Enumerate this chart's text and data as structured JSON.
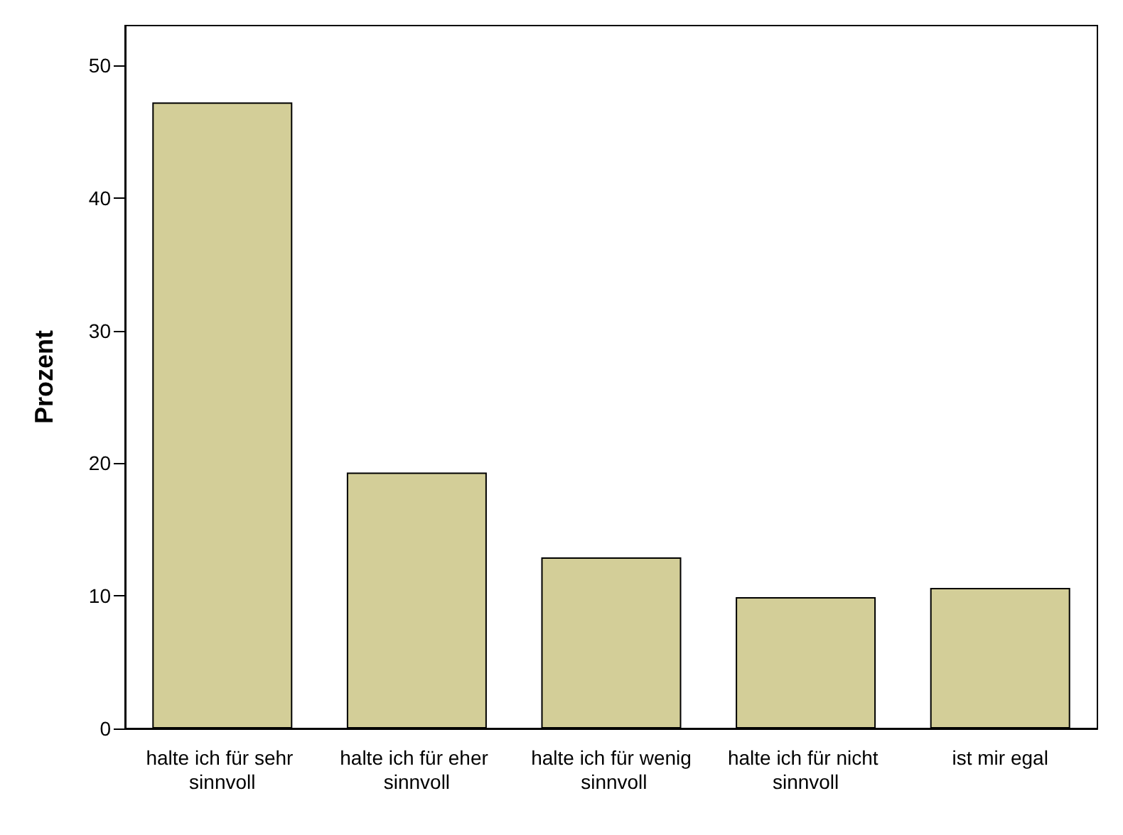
{
  "chart_data": {
    "type": "bar",
    "ylabel": "Prozent",
    "categories": [
      "halte ich für sehr sinnvoll",
      "halte ich für eher sinnvoll",
      "halte ich für wenig sinnvoll",
      "halte ich für nicht sinnvoll",
      "ist mir egal"
    ],
    "values": [
      47.2,
      19.3,
      12.9,
      9.9,
      10.6
    ],
    "color": "#d3ce98",
    "ylim": [
      0,
      53
    ],
    "yticks": [
      0,
      10,
      20,
      30,
      40,
      50
    ],
    "grid": false
  }
}
